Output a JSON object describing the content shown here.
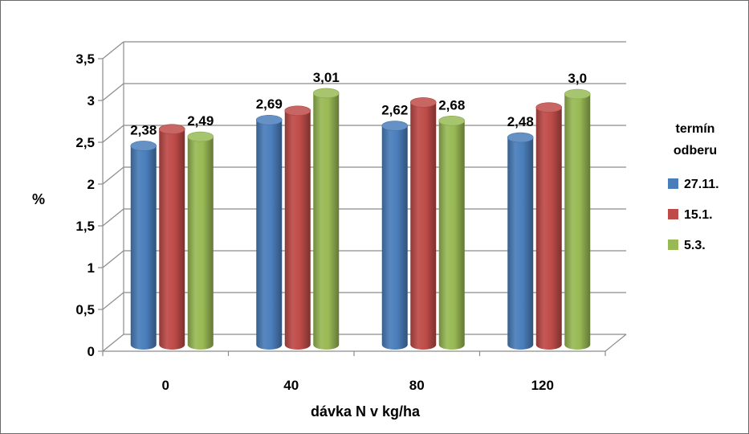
{
  "chart_data": {
    "type": "bar",
    "categories": [
      "0",
      "40",
      "80",
      "120"
    ],
    "series": [
      {
        "name": "27.11.",
        "values": [
          2.38,
          2.69,
          2.62,
          2.48
        ],
        "color": "#4a7ebb"
      },
      {
        "name": "15.1.",
        "values": [
          2.58,
          2.8,
          2.9,
          2.84
        ],
        "color": "#be4b48"
      },
      {
        "name": "5.3.",
        "values": [
          2.49,
          3.01,
          2.68,
          3.0
        ],
        "color": "#98b954"
      }
    ],
    "data_labels": [
      {
        "category": "0",
        "series": "27.11.",
        "text": "2,38"
      },
      {
        "category": "0",
        "series": "5.3.",
        "text": "2,49"
      },
      {
        "category": "40",
        "series": "27.11.",
        "text": "2,69"
      },
      {
        "category": "40",
        "series": "5.3.",
        "text": "3,01"
      },
      {
        "category": "80",
        "series": "27.11.",
        "text": "2,62"
      },
      {
        "category": "80",
        "series": "5.3.",
        "text": "2,68"
      },
      {
        "category": "120",
        "series": "27.11.",
        "text": "2,48"
      },
      {
        "category": "120",
        "series": "5.3.",
        "text": "3,0"
      }
    ],
    "yticks": [
      "0",
      "0,5",
      "1",
      "1,5",
      "2",
      "2,5",
      "3",
      "3,5"
    ],
    "ylim": [
      0,
      3.5
    ],
    "ylabel": "%",
    "xlabel": "dávka N v kg/ha",
    "legend": {
      "title": "termín odberu",
      "title_lines": [
        "termín",
        "odberu"
      ],
      "placement": "right"
    },
    "grid": true,
    "style": "3d-cylinder"
  }
}
